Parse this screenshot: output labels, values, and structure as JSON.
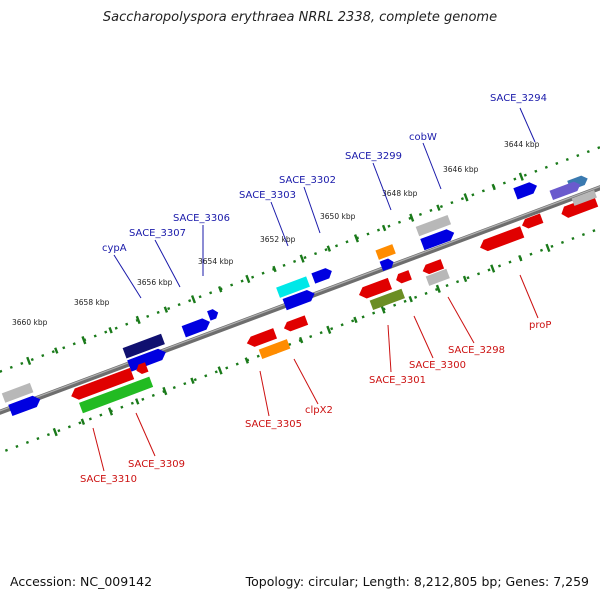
{
  "header": {
    "title": "Saccharopolyspora erythraea NRRL 2338, complete genome"
  },
  "footer": {
    "accession": "Accession: NC_009142",
    "summary": "Topology: circular; Length: 8,212,805 bp; Genes: 7,259"
  },
  "ticks": [
    {
      "label": "3644 kbp"
    },
    {
      "label": "3646 kbp"
    },
    {
      "label": "3648 kbp"
    },
    {
      "label": "3650 kbp"
    },
    {
      "label": "3652 kbp"
    },
    {
      "label": "3654 kbp"
    },
    {
      "label": "3656 kbp"
    },
    {
      "label": "3658 kbp"
    },
    {
      "label": "3660 kbp"
    }
  ],
  "gene_labels_top": [
    {
      "label": "SACE_3294"
    },
    {
      "label": "cobW"
    },
    {
      "label": "SACE_3299"
    },
    {
      "label": "SACE_3302"
    },
    {
      "label": "SACE_3303"
    },
    {
      "label": "SACE_3306"
    },
    {
      "label": "SACE_3307"
    },
    {
      "label": "cypA"
    }
  ],
  "gene_labels_bottom": [
    {
      "label": "proP"
    },
    {
      "label": "SACE_3298"
    },
    {
      "label": "SACE_3300"
    },
    {
      "label": "SACE_3301"
    },
    {
      "label": "clpX2"
    },
    {
      "label": "SACE_3305"
    },
    {
      "label": "SACE_3309"
    },
    {
      "label": "SACE_3310"
    }
  ],
  "colors": {
    "red": "#e00000",
    "blue": "#0000e0",
    "navy": "#101070",
    "cyan": "#00e8e8",
    "orange": "#ff8c00",
    "olive": "#6b8e23",
    "green": "#22bb22",
    "gray": "#b8b8b8",
    "steel": "#3a7ab0",
    "slate": "#6a5acd",
    "backbone": "#777777",
    "tick": "#1a7a1a"
  }
}
